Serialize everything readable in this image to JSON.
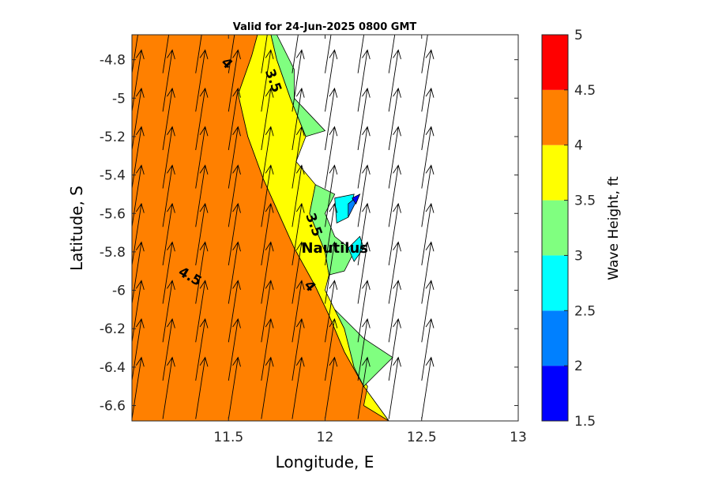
{
  "chart_data": {
    "type": "heatmap",
    "title": "Valid for 24-Jun-2025 0800 GMT",
    "xlabel": "Longitude, E",
    "ylabel": "Latitude, S",
    "xlim": [
      11.0,
      13.0
    ],
    "ylim": [
      -6.68,
      -4.67
    ],
    "x_ticks": [
      11.5,
      12,
      12.5,
      13
    ],
    "x_tick_labels": [
      "11.5",
      "12",
      "12.5",
      "13"
    ],
    "y_ticks": [
      -4.8,
      -5,
      -5.2,
      -5.4,
      -5.6,
      -5.8,
      -6,
      -6.2,
      -6.4,
      -6.6
    ],
    "y_tick_labels": [
      "-4.8",
      "-5",
      "-5.2",
      "-5.4",
      "-5.6",
      "-5.8",
      "-6",
      "-6.2",
      "-6.4",
      "-6.6"
    ],
    "colorbar": {
      "label": "Wave Height, ft",
      "ticks": [
        "1.5",
        "2",
        "2.5",
        "3",
        "3.5",
        "4",
        "4.5",
        "5"
      ],
      "range": [
        1.5,
        5
      ],
      "colors": [
        "#0000ff",
        "#0080ff",
        "#00ffff",
        "#80ff80",
        "#ffff00",
        "#ff8000",
        "#ff0000"
      ]
    },
    "regions": [
      {
        "level": "4-4.5",
        "color": "#ff8000",
        "polygon": [
          [
            11.0,
            -4.67
          ],
          [
            11.65,
            -4.67
          ],
          [
            11.62,
            -4.78
          ],
          [
            11.55,
            -4.98
          ],
          [
            11.6,
            -5.2
          ],
          [
            11.68,
            -5.42
          ],
          [
            11.76,
            -5.6
          ],
          [
            11.84,
            -5.78
          ],
          [
            11.95,
            -5.98
          ],
          [
            12.02,
            -6.13
          ],
          [
            12.1,
            -6.32
          ],
          [
            12.2,
            -6.5
          ],
          [
            12.33,
            -6.68
          ],
          [
            11.0,
            -6.68
          ]
        ]
      },
      {
        "level": "3.5-4",
        "color": "#ffff00",
        "polygon": [
          [
            11.65,
            -4.67
          ],
          [
            11.72,
            -4.67
          ],
          [
            11.75,
            -4.8
          ],
          [
            11.82,
            -5.0
          ],
          [
            11.9,
            -5.2
          ],
          [
            11.85,
            -5.33
          ],
          [
            11.95,
            -5.45
          ],
          [
            11.92,
            -5.6
          ],
          [
            12.0,
            -5.8
          ],
          [
            12.02,
            -5.92
          ],
          [
            12.0,
            -6.0
          ],
          [
            12.05,
            -6.1
          ],
          [
            12.1,
            -6.2
          ],
          [
            12.15,
            -6.4
          ],
          [
            12.22,
            -6.5
          ],
          [
            12.2,
            -6.6
          ],
          [
            12.33,
            -6.68
          ],
          [
            12.2,
            -6.5
          ],
          [
            12.1,
            -6.32
          ],
          [
            12.02,
            -6.13
          ],
          [
            11.95,
            -5.98
          ],
          [
            11.84,
            -5.78
          ],
          [
            11.76,
            -5.6
          ],
          [
            11.68,
            -5.42
          ],
          [
            11.6,
            -5.2
          ],
          [
            11.55,
            -4.98
          ],
          [
            11.62,
            -4.78
          ]
        ]
      },
      {
        "level": "3-3.5",
        "color": "#80ff80",
        "polygon": [
          [
            11.72,
            -4.67
          ],
          [
            11.75,
            -4.67
          ],
          [
            11.84,
            -4.85
          ],
          [
            11.84,
            -5.0
          ],
          [
            12.0,
            -5.17
          ],
          [
            11.9,
            -5.2
          ],
          [
            11.82,
            -5.0
          ],
          [
            11.75,
            -4.8
          ]
        ]
      },
      {
        "level": "3-3.5",
        "color": "#80ff80",
        "polygon": [
          [
            11.95,
            -5.45
          ],
          [
            12.05,
            -5.5
          ],
          [
            12.0,
            -5.6
          ],
          [
            12.05,
            -5.72
          ],
          [
            12.15,
            -5.8
          ],
          [
            12.1,
            -5.9
          ],
          [
            12.02,
            -5.92
          ],
          [
            12.0,
            -5.8
          ],
          [
            11.92,
            -5.6
          ]
        ]
      },
      {
        "level": "3-3.5",
        "color": "#80ff80",
        "polygon": [
          [
            12.05,
            -6.1
          ],
          [
            12.2,
            -6.25
          ],
          [
            12.35,
            -6.35
          ],
          [
            12.25,
            -6.45
          ],
          [
            12.2,
            -6.5
          ],
          [
            12.15,
            -6.4
          ],
          [
            12.1,
            -6.2
          ]
        ]
      },
      {
        "level": "2.5-3",
        "color": "#00ffff",
        "polygon": [
          [
            12.05,
            -5.52
          ],
          [
            12.15,
            -5.5
          ],
          [
            12.12,
            -5.62
          ],
          [
            12.06,
            -5.65
          ]
        ]
      },
      {
        "level": "2.5-3",
        "color": "#00ffff",
        "polygon": [
          [
            12.12,
            -5.78
          ],
          [
            12.18,
            -5.72
          ],
          [
            12.2,
            -5.78
          ],
          [
            12.15,
            -5.85
          ]
        ]
      },
      {
        "level": "2-2.5",
        "color": "#0080ff",
        "polygon": [
          [
            12.12,
            -5.55
          ],
          [
            12.18,
            -5.5
          ],
          [
            12.12,
            -5.62
          ]
        ]
      },
      {
        "level": "1.5-2",
        "color": "#0000ff",
        "polygon": [
          [
            12.14,
            -5.52
          ],
          [
            12.18,
            -5.5
          ],
          [
            12.16,
            -5.55
          ]
        ]
      }
    ],
    "contour_labels": [
      {
        "text": "4.5",
        "x": 11.3,
        "y": -5.93,
        "rotate": 30
      },
      {
        "text": "4",
        "x": 11.49,
        "y": -4.82,
        "rotate": 45
      },
      {
        "text": "3.5",
        "x": 11.73,
        "y": -4.91,
        "rotate": 70
      },
      {
        "text": "3.5",
        "x": 11.94,
        "y": -5.66,
        "rotate": 70
      },
      {
        "text": "4",
        "x": 11.92,
        "y": -5.98,
        "rotate": 50
      }
    ],
    "location": {
      "name": "Nautilus",
      "x": 12.05,
      "y": -5.78
    },
    "vectors": {
      "description": "wave direction arrows",
      "x": [
        11.0,
        11.16,
        11.33,
        11.5,
        11.67,
        11.83,
        12.0,
        12.17,
        12.33,
        12.5
      ],
      "y": [
        -4.67,
        -4.87,
        -5.07,
        -5.27,
        -5.47,
        -5.67,
        -5.87,
        -6.07,
        -6.27,
        -6.47,
        -6.67
      ]
    }
  }
}
